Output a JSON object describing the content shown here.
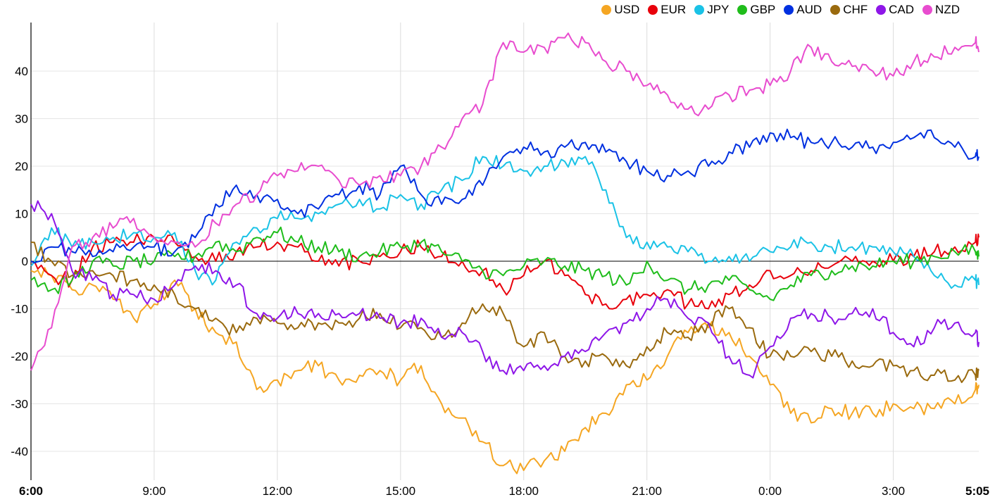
{
  "chart_data": {
    "type": "line",
    "title": "",
    "xlabel": "",
    "ylabel": "",
    "x_ticks": [
      {
        "hour": 0,
        "label": "6:00",
        "bold": true
      },
      {
        "hour": 3,
        "label": "9:00"
      },
      {
        "hour": 6,
        "label": "12:00"
      },
      {
        "hour": 9,
        "label": "15:00"
      },
      {
        "hour": 12,
        "label": "18:00"
      },
      {
        "hour": 15,
        "label": "21:00"
      },
      {
        "hour": 18,
        "label": "0:00"
      },
      {
        "hour": 21,
        "label": "3:00"
      },
      {
        "hour": 23.083,
        "label": "5:05",
        "bold": true
      }
    ],
    "xlim": [
      0,
      23.083
    ],
    "ylim": [
      -46,
      50
    ],
    "y_ticks": [
      40,
      30,
      20,
      10,
      0,
      -10,
      -20,
      -30,
      -40
    ],
    "grid": true,
    "legend_position": "top-right",
    "series": [
      {
        "name": "USD",
        "color": "#f5a623",
        "x": [
          0,
          0.5,
          1,
          1.5,
          2,
          2.5,
          3,
          3.5,
          4,
          4.5,
          5,
          5.5,
          6,
          6.5,
          7,
          7.5,
          8,
          8.5,
          9,
          9.5,
          10,
          10.5,
          11,
          11.5,
          12,
          12.5,
          13,
          13.5,
          14,
          14.5,
          15,
          15.5,
          16,
          16.5,
          17,
          17.5,
          18,
          18.5,
          19,
          19.5,
          20,
          20.5,
          21,
          21.5,
          22,
          22.5,
          23,
          23.083
        ],
        "y": [
          -2,
          -3,
          -6,
          -5,
          -8,
          -12,
          -9,
          -4,
          -10,
          -15,
          -17,
          -27,
          -25,
          -23,
          -22,
          -25,
          -24,
          -23,
          -25,
          -22,
          -30,
          -33,
          -38,
          -43,
          -44,
          -42,
          -40,
          -35,
          -32,
          -26,
          -25,
          -20,
          -15,
          -14,
          -15,
          -20,
          -26,
          -32,
          -34,
          -31,
          -32,
          -32,
          -30,
          -31,
          -31,
          -30,
          -27,
          -26
        ]
      },
      {
        "name": "EUR",
        "color": "#e8000b",
        "x": [
          0,
          0.5,
          1,
          1.5,
          2,
          2.5,
          3,
          3.5,
          4,
          4.5,
          5,
          5.5,
          6,
          6.5,
          7,
          7.5,
          8,
          8.5,
          9,
          9.5,
          10,
          10.5,
          11,
          11.5,
          12,
          12.5,
          13,
          13.5,
          14,
          14.5,
          15,
          15.5,
          16,
          16.5,
          17,
          17.5,
          18,
          18.5,
          19,
          19.5,
          20,
          20.5,
          21,
          21.5,
          22,
          22.5,
          23,
          23.083
        ],
        "y": [
          -1,
          -3,
          -4,
          3,
          4,
          4,
          5,
          4,
          1,
          0,
          2,
          3,
          4,
          3,
          0,
          -1,
          0,
          1,
          2,
          3,
          1,
          0,
          -2,
          -6,
          -3,
          0,
          -3,
          -7,
          -9,
          -8,
          -7,
          -6,
          -9,
          -10,
          -7,
          -5,
          -2,
          -3,
          -2,
          -1,
          0,
          0,
          0,
          1,
          2,
          3,
          4,
          5
        ]
      },
      {
        "name": "JPY",
        "color": "#1ac2e6",
        "x": [
          0,
          0.5,
          1,
          1.5,
          2,
          2.5,
          3,
          3.5,
          4,
          4.5,
          5,
          5.5,
          6,
          6.5,
          7,
          7.5,
          8,
          8.5,
          9,
          9.5,
          10,
          10.5,
          11,
          11.5,
          12,
          12.5,
          13,
          13.5,
          14,
          14.5,
          15,
          15.5,
          16,
          16.5,
          17,
          17.5,
          18,
          18.5,
          19,
          19.5,
          20,
          20.5,
          21,
          21.5,
          22,
          22.5,
          23,
          23.083
        ],
        "y": [
          -1,
          7,
          3,
          4,
          5,
          6,
          5,
          6,
          -2,
          -4,
          4,
          7,
          9,
          9,
          10,
          12,
          13,
          11,
          14,
          12,
          15,
          17,
          22,
          20,
          19,
          20,
          21,
          22,
          15,
          5,
          4,
          3,
          2,
          0,
          1,
          0,
          2,
          3,
          4,
          3,
          3,
          3,
          2,
          1,
          -3,
          -5,
          -4,
          -5
        ]
      },
      {
        "name": "GBP",
        "color": "#1fbd1b",
        "x": [
          0,
          0.5,
          1,
          1.5,
          2,
          2.5,
          3,
          3.5,
          4,
          4.5,
          5,
          5.5,
          6,
          6.5,
          7,
          7.5,
          8,
          8.5,
          9,
          9.5,
          10,
          10.5,
          11,
          11.5,
          12,
          12.5,
          13,
          13.5,
          14,
          14.5,
          15,
          15.5,
          16,
          16.5,
          17,
          17.5,
          18,
          18.5,
          19,
          19.5,
          20,
          20.5,
          21,
          21.5,
          22,
          22.5,
          23,
          23.083
        ],
        "y": [
          -4,
          -6,
          -4,
          0,
          -1,
          0,
          0,
          1,
          1,
          4,
          2,
          5,
          6,
          4,
          3,
          2,
          1,
          2,
          3,
          4,
          2,
          0,
          -2,
          -3,
          -1,
          0,
          -1,
          -2,
          -3,
          -5,
          0,
          -4,
          -6,
          -5,
          -4,
          -6,
          -8,
          -5,
          -3,
          -2,
          -1,
          -1,
          0,
          0,
          1,
          2,
          2,
          1
        ]
      },
      {
        "name": "AUD",
        "color": "#0030e0",
        "x": [
          0,
          0.5,
          1,
          1.5,
          2,
          2.5,
          3,
          3.5,
          4,
          4.5,
          5,
          5.5,
          6,
          6.5,
          7,
          7.5,
          8,
          8.5,
          9,
          9.5,
          10,
          10.5,
          11,
          11.5,
          12,
          12.5,
          13,
          13.5,
          14,
          14.5,
          15,
          15.5,
          16,
          16.5,
          17,
          17.5,
          18,
          18.5,
          19,
          19.5,
          20,
          20.5,
          21,
          21.5,
          22,
          22.5,
          23,
          23.083
        ],
        "y": [
          0,
          3,
          2,
          1,
          2,
          3,
          3,
          2,
          5,
          12,
          16,
          14,
          13,
          10,
          11,
          14,
          16,
          14,
          20,
          14,
          12,
          13,
          16,
          22,
          24,
          23,
          24,
          25,
          23,
          21,
          19,
          18,
          19,
          20,
          23,
          24,
          27,
          26,
          25,
          25,
          24,
          24,
          25,
          26,
          26,
          24,
          22,
          22
        ]
      },
      {
        "name": "CHF",
        "color": "#9a6a0e",
        "x": [
          0,
          0.5,
          1,
          1.5,
          2,
          2.5,
          3,
          3.5,
          4,
          4.5,
          5,
          5.5,
          6,
          6.5,
          7,
          7.5,
          8,
          8.5,
          9,
          9.5,
          10,
          10.5,
          11,
          11.5,
          12,
          12.5,
          13,
          13.5,
          14,
          14.5,
          15,
          15.5,
          16,
          16.5,
          17,
          17.5,
          18,
          18.5,
          19,
          19.5,
          20,
          20.5,
          21,
          21.5,
          22,
          22.5,
          23,
          23.083
        ],
        "y": [
          4,
          0,
          -3,
          -2,
          -3,
          -4,
          -5,
          -7,
          -10,
          -12,
          -15,
          -12,
          -13,
          -14,
          -13,
          -13,
          -12,
          -11,
          -14,
          -14,
          -16,
          -13,
          -9,
          -11,
          -18,
          -15,
          -20,
          -21,
          -20,
          -22,
          -18,
          -15,
          -16,
          -13,
          -10,
          -14,
          -20,
          -20,
          -19,
          -20,
          -21,
          -22,
          -22,
          -23,
          -24,
          -25,
          -24,
          -23
        ]
      },
      {
        "name": "CAD",
        "color": "#8e16e8",
        "x": [
          0,
          0.5,
          1,
          1.5,
          2,
          2.5,
          3,
          3.5,
          4,
          4.5,
          5,
          5.5,
          6,
          6.5,
          7,
          7.5,
          8,
          8.5,
          9,
          9.5,
          10,
          10.5,
          11,
          11.5,
          12,
          12.5,
          13,
          13.5,
          14,
          14.5,
          15,
          15.5,
          16,
          16.5,
          17,
          17.5,
          18,
          18.5,
          19,
          19.5,
          20,
          20.5,
          21,
          21.5,
          22,
          22.5,
          23,
          23.083
        ],
        "y": [
          12,
          10,
          -2,
          -4,
          -7,
          -7,
          -8,
          -5,
          -1,
          -2,
          -5,
          -11,
          -12,
          -11,
          -11,
          -11,
          -11,
          -12,
          -13,
          -12,
          -16,
          -15,
          -19,
          -23,
          -23,
          -22,
          -20,
          -19,
          -15,
          -13,
          -10,
          -8,
          -12,
          -13,
          -20,
          -24,
          -18,
          -12,
          -11,
          -12,
          -11,
          -10,
          -15,
          -18,
          -14,
          -13,
          -15,
          -17
        ]
      },
      {
        "name": "NZD",
        "color": "#e84ccf",
        "x": [
          0,
          0.5,
          1,
          1.5,
          2,
          2.5,
          3,
          3.5,
          4,
          4.5,
          5,
          5.5,
          6,
          6.5,
          7,
          7.5,
          8,
          8.5,
          9,
          9.5,
          10,
          10.5,
          11,
          11.5,
          12,
          12.5,
          13,
          13.5,
          14,
          14.5,
          15,
          15.5,
          16,
          16.5,
          17,
          17.5,
          18,
          18.5,
          19,
          19.5,
          20,
          20.5,
          21,
          21.5,
          22,
          22.5,
          23,
          23.083
        ],
        "y": [
          -23,
          -14,
          3,
          5,
          7,
          9,
          5,
          4,
          3,
          8,
          12,
          14,
          18,
          19,
          20,
          17,
          16,
          18,
          18,
          20,
          24,
          30,
          33,
          46,
          44,
          45,
          47,
          46,
          42,
          40,
          37,
          35,
          32,
          32,
          35,
          36,
          37,
          40,
          45,
          42,
          41,
          40,
          39,
          42,
          43,
          45,
          46,
          44
        ]
      }
    ]
  }
}
